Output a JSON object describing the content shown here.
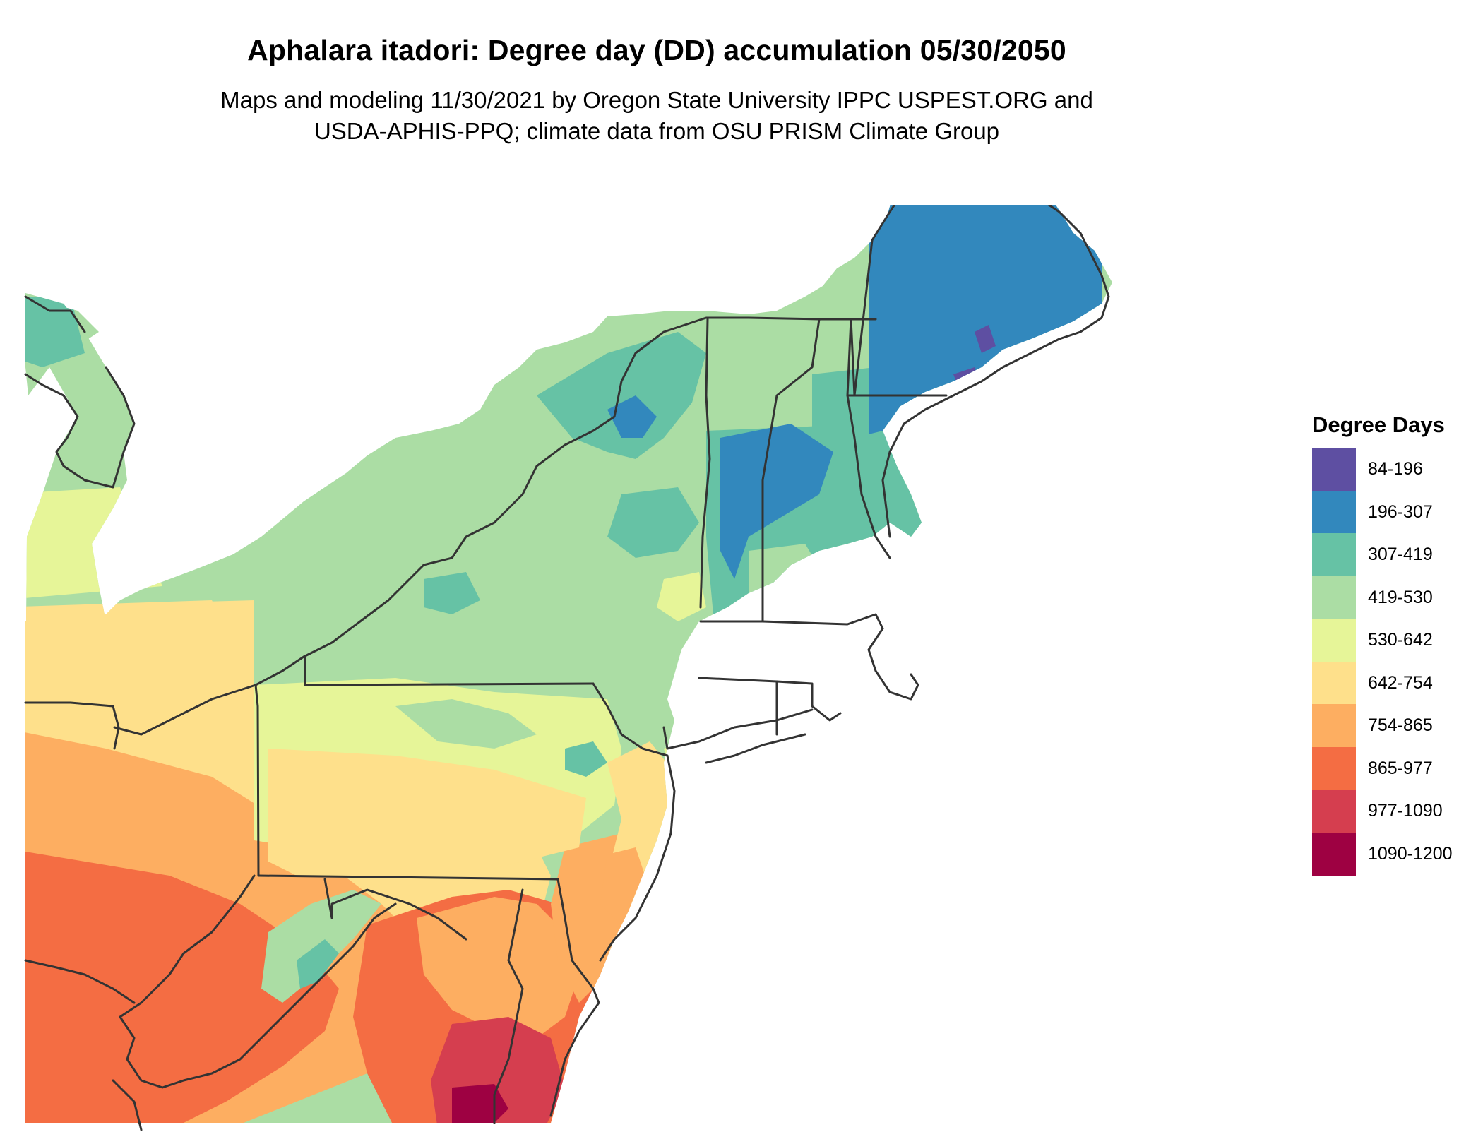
{
  "title": "Aphalara itadori: Degree day (DD) accumulation 05/30/2050",
  "subtitle_line1": "Maps and modeling 11/30/2021 by Oregon State University IPPC USPEST.ORG and",
  "subtitle_line2": "USDA-APHIS-PPQ; climate data from OSU PRISM Climate Group",
  "legend": {
    "title": "Degree Days",
    "items": [
      {
        "label": "84-196",
        "color": "#5e4fa2"
      },
      {
        "label": "196-307",
        "color": "#3288bd"
      },
      {
        "label": "307-419",
        "color": "#66c2a5"
      },
      {
        "label": "419-530",
        "color": "#abdda4"
      },
      {
        "label": "530-642",
        "color": "#e6f598"
      },
      {
        "label": "642-754",
        "color": "#fee08b"
      },
      {
        "label": "754-865",
        "color": "#fdae61"
      },
      {
        "label": "865-977",
        "color": "#f46d43"
      },
      {
        "label": "977-1090",
        "color": "#d53e4f"
      },
      {
        "label": "1090-1200",
        "color": "#9e0142"
      }
    ]
  },
  "map": {
    "region": "Northeastern United States",
    "border_color": "#333333"
  }
}
